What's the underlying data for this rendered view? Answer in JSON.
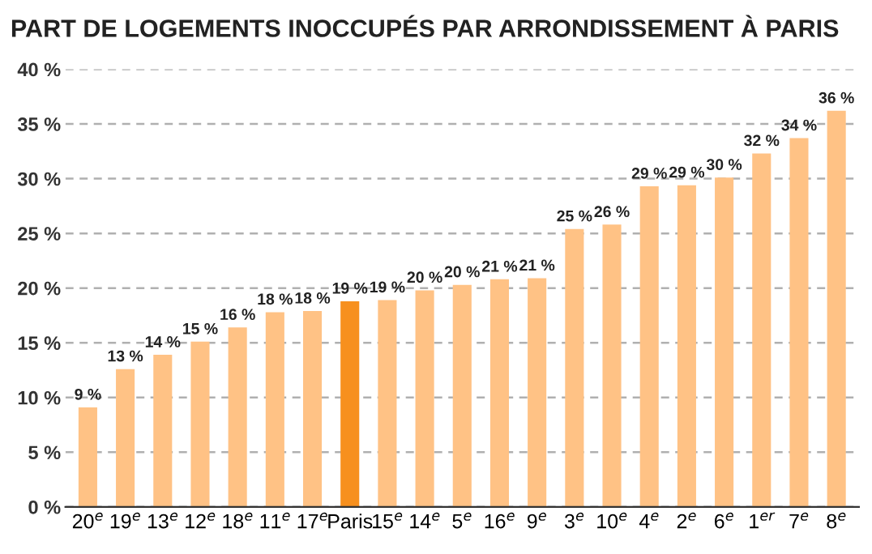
{
  "chart_data": {
    "type": "bar",
    "title": "PART DE LOGEMENTS INOCCUPÉS PAR ARRONDISSEMENT À PARIS",
    "categories": [
      "20$^{e}$",
      "19$^{e}$",
      "13$^{e}$",
      "12$^{e}$",
      "18$^{e}$",
      "11$^{e}$",
      "17$^{e}$",
      "Paris",
      "15$^{e}$",
      "14$^{e}$",
      "5$^{e}$",
      "16$^{e}$",
      "9$^{e}$",
      "3$^{e}$",
      "10$^{e}$",
      "4$^{e}$",
      "2$^{e}$",
      "6$^{e}$",
      "1$^{er}$",
      "7$^{e}$",
      "8$^{e}$"
    ],
    "values": [
      9.1,
      12.6,
      13.9,
      15.1,
      16.4,
      17.8,
      17.9,
      18.8,
      18.9,
      19.8,
      20.3,
      20.8,
      20.9,
      25.4,
      25.8,
      29.3,
      29.4,
      30.1,
      32.3,
      33.7,
      36.2
    ],
    "value_labels": [
      "9 %",
      "13 %",
      "14 %",
      "15 %",
      "16 %",
      "18 %",
      "18 %",
      "19 %",
      "19 %",
      "20 %",
      "20 %",
      "21 %",
      "21 %",
      "25 %",
      "26 %",
      "29 %",
      "29 %",
      "30 %",
      "32 %",
      "34 %",
      "36 %"
    ],
    "colors": [
      "#ffc285",
      "#ffc285",
      "#ffc285",
      "#ffc285",
      "#ffc285",
      "#ffc285",
      "#ffc285",
      "#f7901e",
      "#ffc285",
      "#ffc285",
      "#ffc285",
      "#ffc285",
      "#ffc285",
      "#ffc285",
      "#ffc285",
      "#ffc285",
      "#ffc285",
      "#ffc285",
      "#ffc285",
      "#ffc285",
      "#ffc285"
    ],
    "ylim": [
      0,
      40
    ],
    "yticks": [
      {
        "value": 0,
        "label": "0 %"
      },
      {
        "value": 5,
        "label": "5 %"
      },
      {
        "value": 10,
        "label": "10 %"
      },
      {
        "value": 15,
        "label": "15 %"
      },
      {
        "value": 20,
        "label": "20 %"
      },
      {
        "value": 25,
        "label": "25 %"
      },
      {
        "value": 30,
        "label": "30 %"
      },
      {
        "value": 35,
        "label": "35 %"
      },
      {
        "value": 40,
        "label": "40 %"
      }
    ],
    "grid": "y"
  }
}
